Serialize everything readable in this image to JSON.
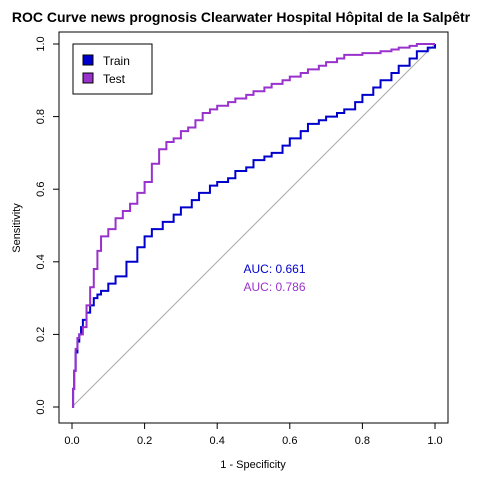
{
  "chart_data": {
    "type": "line",
    "title": "ROC Curve news prognosis Clearwater Hospital Hôpital de la Salpêtr",
    "xlabel": "1 - Specificity",
    "ylabel": "Sensitivity",
    "xlim": [
      0,
      1
    ],
    "ylim": [
      0,
      1
    ],
    "x_ticks": [
      "0.0",
      "0.2",
      "0.4",
      "0.6",
      "0.8",
      "1.0"
    ],
    "y_ticks": [
      "0.0",
      "0.2",
      "0.4",
      "0.6",
      "0.8",
      "1.0"
    ],
    "grid": false,
    "legend_position": "top-left",
    "legend": [
      {
        "label": "Train",
        "color": "#0000cd"
      },
      {
        "label": "Test",
        "color": "#9932cc"
      }
    ],
    "reference_line": {
      "x": [
        0,
        1
      ],
      "y": [
        0,
        1
      ],
      "color": "#aaaaaa"
    },
    "series": [
      {
        "name": "Train",
        "color": "#0000cd",
        "x": [
          0,
          0.003,
          0.006,
          0.01,
          0.015,
          0.02,
          0.025,
          0.03,
          0.04,
          0.05,
          0.06,
          0.07,
          0.08,
          0.1,
          0.12,
          0.15,
          0.18,
          0.2,
          0.22,
          0.25,
          0.28,
          0.3,
          0.33,
          0.35,
          0.38,
          0.4,
          0.43,
          0.45,
          0.48,
          0.5,
          0.53,
          0.55,
          0.58,
          0.6,
          0.63,
          0.65,
          0.68,
          0.7,
          0.73,
          0.75,
          0.78,
          0.8,
          0.83,
          0.85,
          0.88,
          0.9,
          0.93,
          0.95,
          0.98,
          1.0
        ],
        "y": [
          0,
          0.05,
          0.1,
          0.15,
          0.18,
          0.2,
          0.22,
          0.24,
          0.26,
          0.28,
          0.3,
          0.31,
          0.32,
          0.34,
          0.36,
          0.4,
          0.44,
          0.47,
          0.49,
          0.51,
          0.53,
          0.55,
          0.57,
          0.59,
          0.61,
          0.62,
          0.63,
          0.65,
          0.66,
          0.68,
          0.69,
          0.7,
          0.72,
          0.74,
          0.76,
          0.78,
          0.79,
          0.8,
          0.81,
          0.82,
          0.84,
          0.86,
          0.88,
          0.9,
          0.92,
          0.94,
          0.96,
          0.98,
          0.99,
          1.0
        ]
      },
      {
        "name": "Test",
        "color": "#9932cc",
        "x": [
          0,
          0.003,
          0.006,
          0.01,
          0.015,
          0.02,
          0.03,
          0.04,
          0.05,
          0.06,
          0.07,
          0.08,
          0.1,
          0.12,
          0.14,
          0.16,
          0.18,
          0.2,
          0.22,
          0.24,
          0.26,
          0.28,
          0.3,
          0.32,
          0.34,
          0.36,
          0.38,
          0.4,
          0.43,
          0.45,
          0.48,
          0.5,
          0.53,
          0.55,
          0.58,
          0.6,
          0.63,
          0.65,
          0.68,
          0.7,
          0.73,
          0.75,
          0.8,
          0.85,
          0.88,
          0.9,
          0.93,
          0.95,
          0.98,
          1.0
        ],
        "y": [
          0,
          0.05,
          0.1,
          0.16,
          0.19,
          0.2,
          0.22,
          0.28,
          0.33,
          0.38,
          0.43,
          0.47,
          0.49,
          0.52,
          0.54,
          0.56,
          0.59,
          0.62,
          0.67,
          0.71,
          0.73,
          0.74,
          0.76,
          0.77,
          0.79,
          0.81,
          0.82,
          0.83,
          0.84,
          0.85,
          0.86,
          0.87,
          0.88,
          0.89,
          0.9,
          0.91,
          0.92,
          0.93,
          0.94,
          0.95,
          0.96,
          0.97,
          0.975,
          0.98,
          0.985,
          0.99,
          0.995,
          1.0,
          1.0,
          1.0
        ]
      }
    ],
    "annotations": [
      {
        "text": "AUC: 0.661",
        "color": "#0000cd",
        "x": 0.5,
        "y": 0.38
      },
      {
        "text": "AUC: 0.786",
        "color": "#9932cc",
        "x": 0.5,
        "y": 0.33
      }
    ]
  }
}
